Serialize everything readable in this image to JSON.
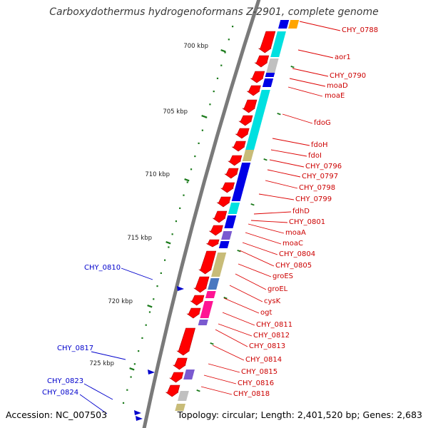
{
  "title": "Carboxydothermus hydrogenoformans Z-2901, complete genome",
  "accession_text": "Accession: NC_007503",
  "topology_text": "Topology: circular; Length: 2,401,520 bp; Genes: 2,683",
  "colors": {
    "backbone": "#7a7a7a",
    "tick": "#1a7a1a",
    "cds_red": "#ff0000",
    "label_red": "#cc0000",
    "label_blue": "#0000cc",
    "cyan": "#00e0e0",
    "blue": "#0000e6",
    "khaki": "#c8bc78",
    "magenta": "#ff1493",
    "steel": "#4a78c0",
    "purple": "#7a5ad0",
    "grey": "#c0c0c0",
    "orange": "#ffa500"
  },
  "ticks": [
    {
      "label": "700 kbp",
      "major": true
    },
    {
      "label": "705 kbp",
      "major": true
    },
    {
      "label": "710 kbp",
      "major": true
    },
    {
      "label": "715 kbp",
      "major": true
    },
    {
      "label": "720 kbp",
      "major": true
    },
    {
      "label": "725 kbp",
      "major": true
    }
  ],
  "right_labels": [
    "CHY_0788",
    "aor1",
    "CHY_0790",
    "moaD",
    "moaE",
    "fdoG",
    "fdoH",
    "fdoI",
    "CHY_0796",
    "CHY_0797",
    "CHY_0798",
    "CHY_0799",
    "fdhD",
    "CHY_0801",
    "moaA",
    "moaC",
    "CHY_0804",
    "CHY_0805",
    "groES",
    "groEL",
    "cysK",
    "ogt",
    "CHY_0811",
    "CHY_0812",
    "CHY_0813",
    "CHY_0814",
    "CHY_0815",
    "CHY_0816",
    "CHY_0818"
  ],
  "left_labels": [
    "CHY_0810",
    "CHY_0817",
    "CHY_0823",
    "CHY_0824"
  ]
}
